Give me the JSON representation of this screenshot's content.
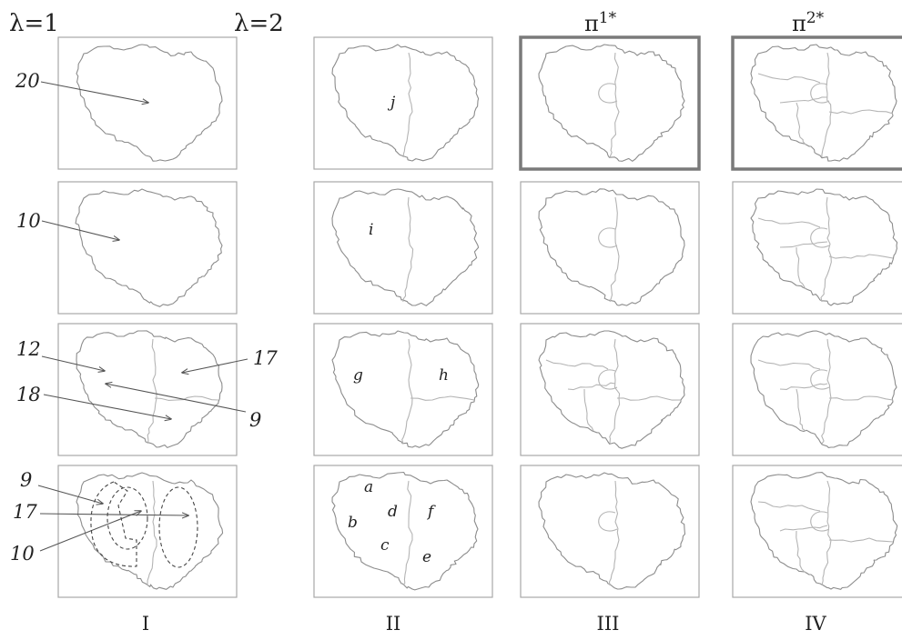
{
  "headers": {
    "lambda1": "λ=1",
    "lambda2": "λ=2",
    "pi1": "π",
    "pi1_sup": "1*",
    "pi2": "π",
    "pi2_sup": "2*"
  },
  "columns": {
    "c1": "I",
    "c2": "II",
    "c3": "III",
    "c4": "IV"
  },
  "annotations": {
    "r1_20": "20",
    "r2_10": "10",
    "r3_12": "12",
    "r3_17": "17",
    "r3_18": "18",
    "r3_9": "9",
    "r4_9": "9",
    "r4_17": "17",
    "r4_10": "10"
  },
  "regions": {
    "j": "j",
    "i": "i",
    "g": "g",
    "h": "h",
    "a": "a",
    "b": "b",
    "c": "c",
    "d": "d",
    "e": "e",
    "f": "f"
  },
  "colors": {
    "frame": "#a8a8a8",
    "frame_bold": "#7a7a7a",
    "border": "#8c8c8c",
    "inner_border": "#b4b4b4",
    "arrow": "#555555"
  }
}
